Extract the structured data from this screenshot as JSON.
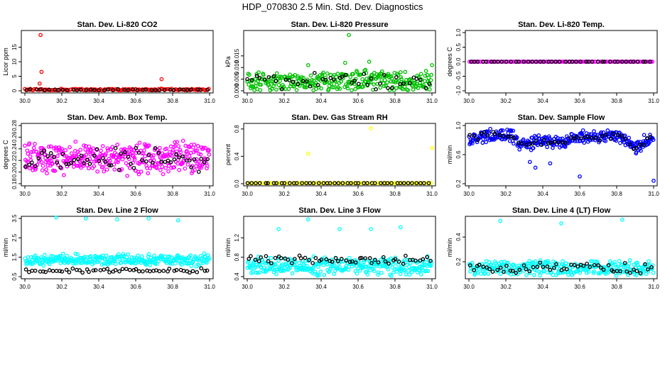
{
  "page": {
    "title": "HDP_070830  2.5 Min. Std. Dev. Diagnostics"
  },
  "chart_data": [
    {
      "id": "co2",
      "type": "scatter",
      "title": "Stan. Dev. Li-820 CO2",
      "ylabel": "Licor ppm",
      "xlim": [
        30.0,
        31.0
      ],
      "ylim": [
        0,
        20
      ],
      "yticks": [
        0,
        5,
        10,
        15
      ],
      "ytick_labels": [
        "0",
        "5",
        "10",
        "15"
      ],
      "xticks": [
        30.0,
        30.2,
        30.4,
        30.6,
        30.8,
        31.0
      ],
      "xtick_labels": [
        "30.0",
        "30.2",
        "30.4",
        "30.6",
        "30.8",
        "31.0"
      ],
      "series": [
        {
          "name": "primary",
          "color": "#ff0000",
          "base": 0.4,
          "spread": 0.4,
          "n": 140,
          "extra_points": [
            [
              30.085,
              19.2
            ],
            [
              30.09,
              6.5
            ],
            [
              30.08,
              2.5
            ],
            [
              30.74,
              4.0
            ]
          ]
        },
        {
          "name": "secondary",
          "color": "#000000",
          "base": 0.3,
          "spread": 0.3,
          "n": 40,
          "extra_points": []
        }
      ]
    },
    {
      "id": "pressure",
      "type": "scatter",
      "title": "Stan. Dev. Li-820 Pressure",
      "ylabel": "kPa",
      "xlim": [
        30.0,
        31.0
      ],
      "ylim": [
        0,
        0.025
      ],
      "yticks": [
        0.0,
        0.005,
        0.01,
        0.015
      ],
      "ytick_labels": [
        "0.000",
        "0.005",
        "0.010",
        "0.015"
      ],
      "xticks": [
        30.0,
        30.2,
        30.4,
        30.6,
        30.8,
        31.0
      ],
      "xtick_labels": [
        "30.0",
        "30.2",
        "30.4",
        "30.6",
        "30.8",
        "31.0"
      ],
      "series": [
        {
          "name": "primary",
          "color": "#00c000",
          "base": 0.004,
          "spread": 0.005,
          "n": 300,
          "extra_points": [
            [
              30.55,
              0.024
            ],
            [
              30.33,
              0.011
            ],
            [
              30.53,
              0.012
            ],
            [
              30.66,
              0.0125
            ],
            [
              31.0,
              0.011
            ],
            [
              30.64,
              0.009
            ],
            [
              30.83,
              0.008
            ]
          ]
        },
        {
          "name": "secondary",
          "color": "#000000",
          "base": 0.004,
          "spread": 0.004,
          "n": 45,
          "extra_points": []
        }
      ]
    },
    {
      "id": "temp",
      "type": "scatter",
      "title": "Stan. Dev. Li-820 Temp.",
      "ylabel": "degrees C",
      "xlim": [
        30.0,
        31.0
      ],
      "ylim": [
        -1.0,
        1.0
      ],
      "yticks": [
        -1.0,
        -0.5,
        0.0,
        0.5,
        1.0
      ],
      "ytick_labels": [
        "-1.0",
        "-0.5",
        "0.0",
        "0.5",
        "1.0"
      ],
      "xticks": [
        30.0,
        30.2,
        30.4,
        30.6,
        30.8,
        31.0
      ],
      "xtick_labels": [
        "30.0",
        "30.2",
        "30.4",
        "30.6",
        "30.8",
        "31.0"
      ],
      "series": [
        {
          "name": "primary",
          "color": "#ff00ff",
          "base": 0.0,
          "spread": 0.0,
          "n": 130,
          "extra_points": []
        },
        {
          "name": "secondary",
          "color": "#000000",
          "base": 0.0,
          "spread": 0.0,
          "n": 45,
          "extra_points": []
        }
      ]
    },
    {
      "id": "ambbox",
      "type": "scatter",
      "title": "Stan. Dev. Amb. Box Temp.",
      "ylabel": "degrees C",
      "xlim": [
        30.0,
        31.0
      ],
      "ylim": [
        0.18,
        0.28
      ],
      "yticks": [
        0.18,
        0.2,
        0.22,
        0.24,
        0.26,
        0.28
      ],
      "ytick_labels": [
        "0.18",
        "0.20",
        "0.22",
        "0.24",
        "0.26",
        "0.28"
      ],
      "xticks": [
        30.0,
        30.2,
        30.4,
        30.6,
        30.8,
        31.0
      ],
      "xtick_labels": [
        "30.0",
        "30.2",
        "30.4",
        "30.6",
        "30.8",
        "31.0"
      ],
      "series": [
        {
          "name": "primary",
          "color": "#ff00ff",
          "base": 0.225,
          "spread": 0.032,
          "n": 380,
          "extra_points": []
        },
        {
          "name": "secondary",
          "color": "#000000",
          "base": 0.222,
          "spread": 0.024,
          "n": 60,
          "extra_points": []
        }
      ]
    },
    {
      "id": "rh",
      "type": "scatter",
      "title": "Stan. Dev. Gas Stream RH",
      "ylabel": "percent",
      "xlim": [
        30.0,
        31.0
      ],
      "ylim": [
        0,
        0.85
      ],
      "yticks": [
        0.0,
        0.4,
        0.8
      ],
      "ytick_labels": [
        "0.0",
        "0.4",
        "0.8"
      ],
      "xticks": [
        30.0,
        30.2,
        30.4,
        30.6,
        30.8,
        31.0
      ],
      "xtick_labels": [
        "30.0",
        "30.2",
        "30.4",
        "30.6",
        "30.8",
        "31.0"
      ],
      "series": [
        {
          "name": "primary",
          "color": "#ffff00",
          "base": 0.0,
          "spread": 0.0,
          "n": 120,
          "extra_points": [
            [
              30.67,
              0.81
            ],
            [
              30.33,
              0.44
            ],
            [
              31.0,
              0.52
            ]
          ]
        },
        {
          "name": "secondary",
          "color": "#000000",
          "base": 0.0,
          "spread": 0.0,
          "n": 45,
          "extra_points": []
        }
      ]
    },
    {
      "id": "sampleflow",
      "type": "scatter",
      "title": "Stan. Dev. Sample Flow",
      "ylabel": "ml/min",
      "xlim": [
        30.0,
        31.0
      ],
      "ylim": [
        0.2,
        1.0
      ],
      "yticks": [
        0.2,
        0.6,
        1.0
      ],
      "ytick_labels": [
        "0.2",
        "0.6",
        "1.0"
      ],
      "xticks": [
        30.0,
        30.2,
        30.4,
        30.6,
        30.8,
        31.0
      ],
      "xtick_labels": [
        "30.0",
        "30.2",
        "30.4",
        "30.6",
        "30.8",
        "31.0"
      ],
      "series": [
        {
          "name": "primary",
          "color": "#0000ff",
          "base": 0.8,
          "spread": 0.1,
          "n": 340,
          "profile": "wave",
          "extra_points": [
            [
              30.36,
              0.42
            ],
            [
              30.6,
              0.3
            ],
            [
              31.0,
              0.24
            ],
            [
              30.44,
              0.48
            ],
            [
              30.33,
              0.5
            ]
          ]
        },
        {
          "name": "secondary",
          "color": "#000000",
          "base": 0.8,
          "spread": 0.06,
          "n": 50,
          "profile": "wave",
          "extra_points": []
        }
      ]
    },
    {
      "id": "line2",
      "type": "scatter",
      "title": "Stan. Dev. Line 2 Flow",
      "ylabel": "ml/min",
      "xlim": [
        30.0,
        31.0
      ],
      "ylim": [
        0.5,
        3.5
      ],
      "yticks": [
        0.5,
        1.5,
        2.5,
        3.5
      ],
      "ytick_labels": [
        "0.5",
        "1.5",
        "2.5",
        "3.5"
      ],
      "xticks": [
        30.0,
        30.2,
        30.4,
        30.6,
        30.8,
        31.0
      ],
      "xtick_labels": [
        "30.0",
        "30.2",
        "30.4",
        "30.6",
        "30.8",
        "31.0"
      ],
      "series": [
        {
          "name": "primary",
          "color": "#00ffff",
          "base": 1.35,
          "spread": 0.35,
          "n": 300,
          "extra_points": [
            [
              30.17,
              3.55
            ],
            [
              30.33,
              3.5
            ],
            [
              30.5,
              3.45
            ],
            [
              30.67,
              3.5
            ],
            [
              30.83,
              3.4
            ]
          ]
        },
        {
          "name": "secondary",
          "color": "#000000",
          "base": 0.82,
          "spread": 0.12,
          "n": 55,
          "extra_points": []
        }
      ]
    },
    {
      "id": "line3",
      "type": "scatter",
      "title": "Stan. Dev. Line 3 Flow",
      "ylabel": "ml/min",
      "xlim": [
        30.0,
        31.0
      ],
      "ylim": [
        0.4,
        1.6
      ],
      "yticks": [
        0.4,
        0.8,
        1.2
      ],
      "ytick_labels": [
        "0.4",
        "0.8",
        "1.2"
      ],
      "xticks": [
        30.0,
        30.2,
        30.4,
        30.6,
        30.8,
        31.0
      ],
      "xtick_labels": [
        "30.0",
        "30.2",
        "30.4",
        "30.6",
        "30.8",
        "31.0"
      ],
      "series": [
        {
          "name": "primary",
          "color": "#00ffff",
          "base": 0.62,
          "spread": 0.22,
          "n": 320,
          "extra_points": [
            [
              30.17,
              1.38
            ],
            [
              30.33,
              1.58
            ],
            [
              30.5,
              1.38
            ],
            [
              30.67,
              1.38
            ],
            [
              30.83,
              1.42
            ],
            [
              30.38,
              0.42
            ]
          ]
        },
        {
          "name": "secondary",
          "color": "#000000",
          "base": 0.75,
          "spread": 0.1,
          "n": 55,
          "extra_points": []
        }
      ]
    },
    {
      "id": "line4",
      "type": "scatter",
      "title": "Stan. Dev. Line 4 (LT) Flow",
      "ylabel": "ml/min",
      "xlim": [
        30.0,
        31.0
      ],
      "ylim": [
        0.08,
        0.55
      ],
      "yticks": [
        0.2,
        0.4
      ],
      "ytick_labels": [
        "0.2",
        "0.4"
      ],
      "xticks": [
        30.0,
        30.2,
        30.4,
        30.6,
        30.8,
        31.0
      ],
      "xtick_labels": [
        "30.0",
        "30.2",
        "30.4",
        "30.6",
        "30.8",
        "31.0"
      ],
      "series": [
        {
          "name": "primary",
          "color": "#00ffff",
          "base": 0.15,
          "spread": 0.07,
          "n": 300,
          "extra_points": [
            [
              30.17,
              0.53
            ],
            [
              30.5,
              0.51
            ],
            [
              30.83,
              0.54
            ]
          ]
        },
        {
          "name": "secondary",
          "color": "#000000",
          "base": 0.15,
          "spread": 0.045,
          "n": 55,
          "extra_points": []
        }
      ]
    }
  ]
}
